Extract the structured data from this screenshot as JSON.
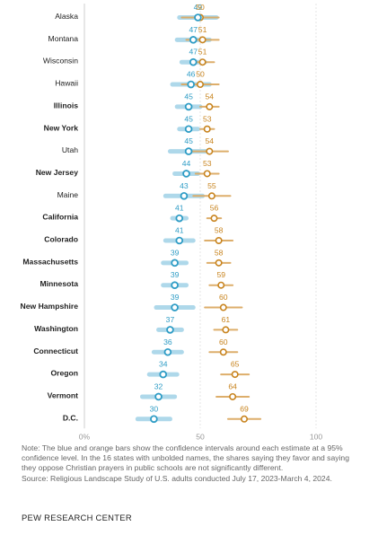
{
  "chart_data": {
    "type": "dot-range",
    "series": [
      {
        "name": "favor",
        "color": "#2e9cc5",
        "bar_color": "#a6d4e8"
      },
      {
        "name": "oppose",
        "color": "#c8841f",
        "bar_color": "#dcaa64"
      }
    ],
    "xlim": [
      0,
      100
    ],
    "x_ticks": [
      "0%",
      "50",
      "100"
    ],
    "rows": [
      {
        "state": "Alaska",
        "bold": false,
        "favor": 49,
        "favor_ci": [
          41,
          57
        ],
        "oppose": 50,
        "oppose_ci": [
          42,
          58
        ]
      },
      {
        "state": "Montana",
        "bold": false,
        "favor": 47,
        "favor_ci": [
          40,
          54
        ],
        "oppose": 51,
        "oppose_ci": [
          44,
          58
        ]
      },
      {
        "state": "Wisconsin",
        "bold": false,
        "favor": 47,
        "favor_ci": [
          42,
          52
        ],
        "oppose": 51,
        "oppose_ci": [
          46,
          56
        ]
      },
      {
        "state": "Hawaii",
        "bold": false,
        "favor": 46,
        "favor_ci": [
          38,
          54
        ],
        "oppose": 50,
        "oppose_ci": [
          42,
          58
        ]
      },
      {
        "state": "Illinois",
        "bold": true,
        "favor": 45,
        "favor_ci": [
          40,
          50
        ],
        "oppose": 54,
        "oppose_ci": [
          50,
          58
        ]
      },
      {
        "state": "New York",
        "bold": true,
        "favor": 45,
        "favor_ci": [
          41,
          49
        ],
        "oppose": 53,
        "oppose_ci": [
          50,
          56
        ]
      },
      {
        "state": "Utah",
        "bold": false,
        "favor": 45,
        "favor_ci": [
          37,
          53
        ],
        "oppose": 54,
        "oppose_ci": [
          46,
          62
        ]
      },
      {
        "state": "New Jersey",
        "bold": true,
        "favor": 44,
        "favor_ci": [
          39,
          49
        ],
        "oppose": 53,
        "oppose_ci": [
          48,
          58
        ]
      },
      {
        "state": "Maine",
        "bold": false,
        "favor": 43,
        "favor_ci": [
          35,
          51
        ],
        "oppose": 55,
        "oppose_ci": [
          47,
          63
        ]
      },
      {
        "state": "California",
        "bold": true,
        "favor": 41,
        "favor_ci": [
          38,
          44
        ],
        "oppose": 56,
        "oppose_ci": [
          53,
          59
        ]
      },
      {
        "state": "Colorado",
        "bold": true,
        "favor": 41,
        "favor_ci": [
          35,
          47
        ],
        "oppose": 58,
        "oppose_ci": [
          52,
          64
        ]
      },
      {
        "state": "Massachusetts",
        "bold": true,
        "favor": 39,
        "favor_ci": [
          34,
          44
        ],
        "oppose": 58,
        "oppose_ci": [
          53,
          63
        ]
      },
      {
        "state": "Minnesota",
        "bold": true,
        "favor": 39,
        "favor_ci": [
          34,
          44
        ],
        "oppose": 59,
        "oppose_ci": [
          54,
          64
        ]
      },
      {
        "state": "New Hampshire",
        "bold": true,
        "favor": 39,
        "favor_ci": [
          31,
          47
        ],
        "oppose": 60,
        "oppose_ci": [
          52,
          68
        ]
      },
      {
        "state": "Washington",
        "bold": true,
        "favor": 37,
        "favor_ci": [
          32,
          42
        ],
        "oppose": 61,
        "oppose_ci": [
          56,
          66
        ]
      },
      {
        "state": "Connecticut",
        "bold": true,
        "favor": 36,
        "favor_ci": [
          30,
          42
        ],
        "oppose": 60,
        "oppose_ci": [
          54,
          66
        ]
      },
      {
        "state": "Oregon",
        "bold": true,
        "favor": 34,
        "favor_ci": [
          28,
          40
        ],
        "oppose": 65,
        "oppose_ci": [
          59,
          71
        ]
      },
      {
        "state": "Vermont",
        "bold": true,
        "favor": 32,
        "favor_ci": [
          25,
          39
        ],
        "oppose": 64,
        "oppose_ci": [
          57,
          71
        ]
      },
      {
        "state": "D.C.",
        "bold": true,
        "favor": 30,
        "favor_ci": [
          23,
          37
        ],
        "oppose": 69,
        "oppose_ci": [
          62,
          76
        ]
      }
    ]
  },
  "footer": {
    "note": "Note: The blue and orange bars show the confidence intervals around each estimate at a 95% confidence level. In the 16 states with unbolded names, the shares saying they favor and saying they oppose Christian prayers in public schools are not significantly different.",
    "source": "Source: Religious Landscape Study of U.S. adults conducted July 17, 2023-March 4, 2024.",
    "credit": "PEW RESEARCH CENTER"
  }
}
